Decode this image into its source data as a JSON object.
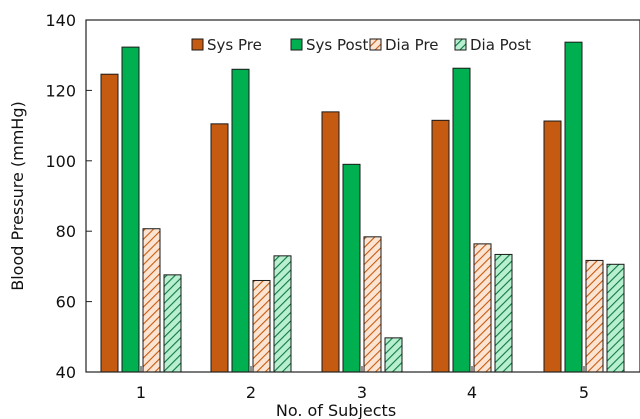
{
  "chart_data": {
    "type": "bar",
    "categories": [
      "1",
      "2",
      "3",
      "4",
      "5"
    ],
    "series": [
      {
        "name": "Sys Pre",
        "values": [
          124.6,
          110.5,
          113.9,
          111.5,
          111.3
        ],
        "color": "#c55a11",
        "pattern": "solid"
      },
      {
        "name": "Sys Post",
        "values": [
          132.3,
          126.0,
          99.0,
          126.3,
          133.7
        ],
        "color": "#00b050",
        "pattern": "solid"
      },
      {
        "name": "Dia Pre",
        "values": [
          80.7,
          66.0,
          78.4,
          76.4,
          71.7
        ],
        "color": "#c55a11",
        "pattern": "hatch"
      },
      {
        "name": "Dia Post",
        "values": [
          67.6,
          73.0,
          49.7,
          73.4,
          70.6
        ],
        "color": "#00b050",
        "pattern": "hatch"
      }
    ],
    "title": "",
    "xlabel": "No. of Subjects",
    "ylabel": "Blood Pressure (mmHg)",
    "ylim": [
      40,
      140
    ],
    "yticks": [
      "40",
      "60",
      "80",
      "100",
      "120",
      "140"
    ],
    "grid": false,
    "legend_position": "top"
  }
}
